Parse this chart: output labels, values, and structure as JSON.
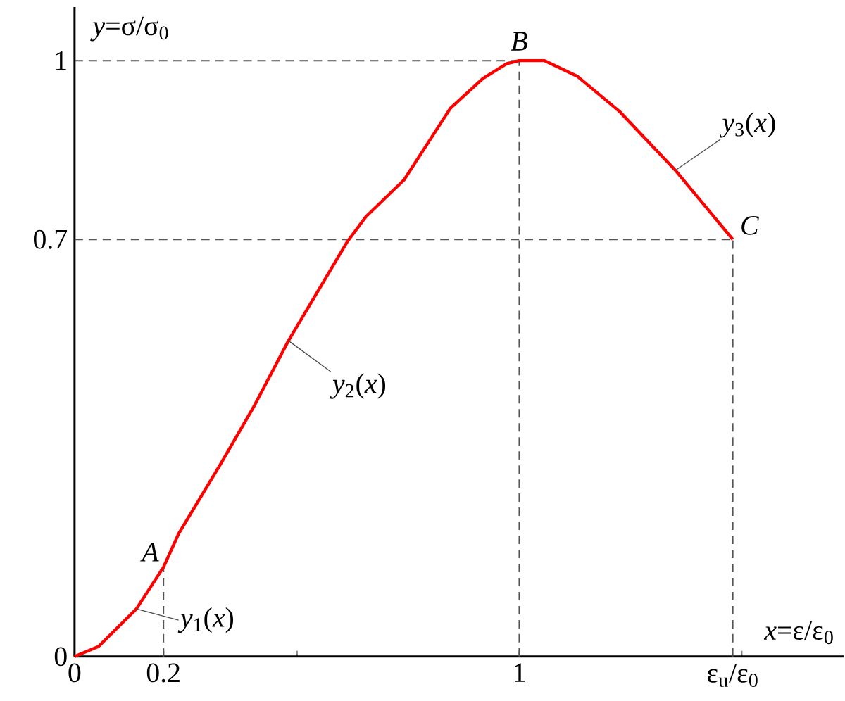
{
  "chart_data": {
    "type": "line",
    "xlabel": "*x*=ε/ε$_{0}$",
    "ylabel": "*y*=σ/σ$_{0}$",
    "xlim": [
      0,
      1.73
    ],
    "ylim": [
      0,
      1.09
    ],
    "xticks": [
      0,
      0.2,
      {
        "value": 0.5,
        "label": null
      },
      1,
      {
        "value": 1.5,
        "label": null
      }
    ],
    "yticks": [
      0,
      0.7,
      1
    ],
    "grid": false,
    "line_style": "solid",
    "series": [
      {
        "color": "#ff0000",
        "x": [
          0,
          0.054,
          0.139,
          0.2,
          0.234,
          0.329,
          0.402,
          0.481,
          0.614,
          0.655,
          0.741,
          0.845,
          0.918,
          0.972,
          1,
          1.057,
          1.13,
          1.225,
          1.351,
          1.48
        ],
        "values": [
          0,
          0.017,
          0.08,
          0.15,
          0.206,
          0.324,
          0.418,
          0.53,
          0.697,
          0.738,
          0.8,
          0.92,
          0.97,
          0.995,
          1,
          1,
          0.974,
          0.915,
          0.816,
          0.7
        ]
      }
    ],
    "ref_lines": [
      {
        "axis": "y",
        "value": 1,
        "color": "#555555",
        "line_style": "dashed"
      },
      {
        "axis": "y",
        "value": 0.7,
        "color": "#555555",
        "line_style": "dashed"
      },
      {
        "axis": "x",
        "value": 0.2,
        "color": "#555555",
        "line_style": "dashed"
      },
      {
        "axis": "x",
        "value": 1,
        "color": "#555555",
        "line_style": "dashed"
      },
      {
        "axis": "x",
        "value": 1.48,
        "color": "#555555",
        "line_style": "dashed",
        "label": "ε$_{u}$/ε$_{0}$"
      }
    ],
    "annotations": [
      {
        "text": "*A*",
        "x": 0.2,
        "y": 0.15
      },
      {
        "text": "*B*",
        "x": 1,
        "y": 1
      },
      {
        "text": "*C*",
        "x": 1.48,
        "y": 0.7
      },
      {
        "text": "*y*$_{1}$(*x*)",
        "x": 0.139,
        "y": 0.08
      },
      {
        "text": "*y*$_{2}$(*x*)",
        "x": 0.481,
        "y": 0.53
      },
      {
        "text": "*y*$_{3}$(*x*)",
        "x": 1.351,
        "y": 0.816
      }
    ]
  }
}
